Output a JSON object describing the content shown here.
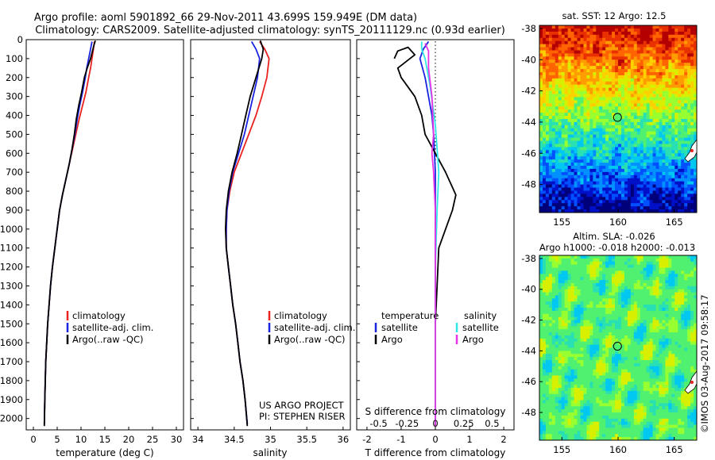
{
  "header": {
    "line1": "Argo profile: aoml 5901892_66 29-Nov-2011 43.699S 159.949E (DM data)",
    "line2": "Climatology: CARS2009. Satellite-adjusted climatology: synTS_20111129.nc (0.93d earlier)"
  },
  "side_text": "©IMOS 03-Aug-2017 09:58:17",
  "colors": {
    "climatology": "#e8221e",
    "satellite": "#1a24e0",
    "argo": "#000000",
    "salinity_sat": "#33e6e6",
    "salinity_argo": "#e633e6"
  },
  "chart_data": [
    {
      "type": "line",
      "xlabel": "temperature (deg C)",
      "xticks": [
        0,
        5,
        10,
        15,
        20,
        25,
        30
      ],
      "xlim": [
        -1.5,
        31.5
      ],
      "yticks": [
        0,
        100,
        200,
        300,
        400,
        500,
        600,
        700,
        800,
        900,
        1000,
        1100,
        1200,
        1300,
        1400,
        1500,
        1600,
        1700,
        1800,
        1900,
        2000
      ],
      "ylim": [
        0,
        2060
      ],
      "y_reversed": true,
      "legend": {
        "placement": "center-right",
        "entries": [
          "climatology",
          "satellite-adj. clim.",
          "Argo(..raw -QC)"
        ]
      },
      "series": [
        {
          "name": "climatology",
          "color": "#e8221e",
          "points": [
            [
              12.8,
              10
            ],
            [
              12.6,
              50
            ],
            [
              12.3,
              100
            ],
            [
              12.0,
              150
            ],
            [
              11.6,
              200
            ],
            [
              11.0,
              280
            ],
            [
              10.3,
              350
            ],
            [
              9.6,
              420
            ],
            [
              8.9,
              500
            ],
            [
              8.2,
              580
            ],
            [
              7.5,
              660
            ],
            [
              6.8,
              740
            ],
            [
              6.1,
              820
            ],
            [
              5.5,
              900
            ],
            [
              5.0,
              1000
            ],
            [
              4.5,
              1100
            ],
            [
              4.0,
              1200
            ],
            [
              3.6,
              1300
            ],
            [
              3.3,
              1400
            ],
            [
              3.0,
              1500
            ],
            [
              2.8,
              1600
            ],
            [
              2.6,
              1700
            ],
            [
              2.5,
              1800
            ],
            [
              2.4,
              1900
            ],
            [
              2.3,
              2030
            ]
          ]
        },
        {
          "name": "satellite-adj. clim.",
          "color": "#1a24e0",
          "points": [
            [
              12.3,
              10
            ],
            [
              12.0,
              50
            ],
            [
              11.6,
              100
            ],
            [
              11.2,
              150
            ],
            [
              10.9,
              200
            ],
            [
              10.3,
              280
            ],
            [
              9.7,
              350
            ],
            [
              9.2,
              420
            ],
            [
              8.7,
              500
            ],
            [
              8.1,
              580
            ],
            [
              7.5,
              660
            ],
            [
              6.8,
              740
            ],
            [
              6.1,
              820
            ],
            [
              5.5,
              900
            ],
            [
              5.0,
              1000
            ],
            [
              4.5,
              1100
            ],
            [
              4.0,
              1200
            ],
            [
              3.6,
              1300
            ],
            [
              3.3,
              1400
            ],
            [
              3.0,
              1500
            ],
            [
              2.8,
              1600
            ],
            [
              2.6,
              1700
            ],
            [
              2.5,
              1800
            ],
            [
              2.4,
              1900
            ],
            [
              2.3,
              2030
            ]
          ]
        },
        {
          "name": "Argo(..raw -QC)",
          "color": "#000000",
          "points": [
            [
              13.0,
              5
            ],
            [
              12.7,
              30
            ],
            [
              12.4,
              60
            ],
            [
              12.0,
              100
            ],
            [
              11.3,
              150
            ],
            [
              10.7,
              200
            ],
            [
              10.1,
              280
            ],
            [
              9.5,
              350
            ],
            [
              9.0,
              420
            ],
            [
              8.6,
              500
            ],
            [
              8.1,
              580
            ],
            [
              7.5,
              660
            ],
            [
              6.8,
              740
            ],
            [
              6.1,
              820
            ],
            [
              5.5,
              900
            ],
            [
              5.0,
              1000
            ],
            [
              4.5,
              1100
            ],
            [
              4.0,
              1200
            ],
            [
              3.6,
              1300
            ],
            [
              3.3,
              1400
            ],
            [
              3.0,
              1500
            ],
            [
              2.8,
              1600
            ],
            [
              2.6,
              1700
            ],
            [
              2.5,
              1800
            ],
            [
              2.4,
              1900
            ],
            [
              2.3,
              2040
            ]
          ]
        }
      ]
    },
    {
      "type": "line",
      "xlabel": "salinity",
      "xticks": [
        34,
        34.5,
        35,
        35.5,
        36
      ],
      "xtick_labels": [
        "34",
        "34.5",
        "35",
        "35.5",
        "36"
      ],
      "xlim": [
        33.9,
        36.1
      ],
      "yticks": [
        0,
        100,
        200,
        300,
        400,
        500,
        600,
        700,
        800,
        900,
        1000,
        1100,
        1200,
        1300,
        1400,
        1500,
        1600,
        1700,
        1800,
        1900,
        2000
      ],
      "ylim": [
        0,
        2060
      ],
      "y_reversed": true,
      "legend": {
        "placement": "center-right",
        "entries": [
          "climatology",
          "satellite-adj. clim.",
          "Argo(..raw -QC)"
        ]
      },
      "annotation": [
        "US ARGO PROJECT",
        "PI: STEPHEN RISER"
      ],
      "series": [
        {
          "name": "climatology",
          "color": "#e8221e",
          "points": [
            [
              34.85,
              10
            ],
            [
              34.92,
              50
            ],
            [
              34.98,
              100
            ],
            [
              34.95,
              200
            ],
            [
              34.88,
              300
            ],
            [
              34.8,
              400
            ],
            [
              34.7,
              500
            ],
            [
              34.6,
              600
            ],
            [
              34.5,
              700
            ],
            [
              34.44,
              800
            ],
            [
              34.4,
              900
            ],
            [
              34.39,
              1000
            ],
            [
              34.39,
              1100
            ],
            [
              34.42,
              1200
            ],
            [
              34.45,
              1300
            ],
            [
              34.48,
              1400
            ],
            [
              34.52,
              1500
            ],
            [
              34.55,
              1600
            ],
            [
              34.58,
              1700
            ],
            [
              34.62,
              1800
            ],
            [
              34.65,
              1900
            ],
            [
              34.68,
              2030
            ]
          ]
        },
        {
          "name": "satellite-adj. clim.",
          "color": "#1a24e0",
          "points": [
            [
              34.74,
              10
            ],
            [
              34.8,
              50
            ],
            [
              34.85,
              100
            ],
            [
              34.82,
              200
            ],
            [
              34.76,
              300
            ],
            [
              34.7,
              400
            ],
            [
              34.64,
              500
            ],
            [
              34.56,
              600
            ],
            [
              34.48,
              700
            ],
            [
              34.43,
              800
            ],
            [
              34.4,
              900
            ],
            [
              34.39,
              1000
            ],
            [
              34.39,
              1100
            ],
            [
              34.42,
              1200
            ],
            [
              34.45,
              1300
            ],
            [
              34.48,
              1400
            ],
            [
              34.52,
              1500
            ],
            [
              34.55,
              1600
            ],
            [
              34.58,
              1700
            ],
            [
              34.62,
              1800
            ],
            [
              34.65,
              1900
            ],
            [
              34.68,
              2030
            ]
          ]
        },
        {
          "name": "Argo(..raw -QC)",
          "color": "#000000",
          "points": [
            [
              34.86,
              5
            ],
            [
              34.9,
              50
            ],
            [
              34.88,
              100
            ],
            [
              34.8,
              200
            ],
            [
              34.72,
              300
            ],
            [
              34.66,
              400
            ],
            [
              34.6,
              500
            ],
            [
              34.54,
              600
            ],
            [
              34.47,
              700
            ],
            [
              34.42,
              800
            ],
            [
              34.39,
              900
            ],
            [
              34.38,
              1000
            ],
            [
              34.39,
              1100
            ],
            [
              34.42,
              1200
            ],
            [
              34.45,
              1300
            ],
            [
              34.48,
              1400
            ],
            [
              34.52,
              1500
            ],
            [
              34.55,
              1600
            ],
            [
              34.58,
              1700
            ],
            [
              34.62,
              1800
            ],
            [
              34.65,
              1900
            ],
            [
              34.68,
              2040
            ]
          ]
        }
      ]
    },
    {
      "type": "line",
      "xlabel": "T difference from climatology",
      "xticks": [
        -2,
        -1,
        0,
        1,
        2
      ],
      "xlim": [
        -2.3,
        2.3
      ],
      "top_xlabel": "S difference from climatology",
      "top_xticks": [
        "-0.5",
        "-0.25",
        "0",
        "0.25",
        "0.5"
      ],
      "ylim": [
        0,
        2060
      ],
      "y_reversed": true,
      "legend": {
        "placement": "center",
        "temperature_title": "temperature",
        "salinity_title": "salinity",
        "entries": [
          "satellite",
          "Argo"
        ]
      },
      "series": [
        {
          "name": "temperature satellite",
          "color": "#1a24e0",
          "points": [
            [
              -0.2,
              10
            ],
            [
              -0.35,
              50
            ],
            [
              -0.45,
              100
            ],
            [
              -0.3,
              200
            ],
            [
              -0.2,
              300
            ],
            [
              -0.1,
              400
            ],
            [
              -0.05,
              500
            ],
            [
              0,
              700
            ],
            [
              0,
              1000
            ],
            [
              0,
              1500
            ],
            [
              0,
              2030
            ]
          ]
        },
        {
          "name": "temperature Argo",
          "color": "#000000",
          "points": [
            [
              -1.2,
              100
            ],
            [
              -1.1,
              60
            ],
            [
              -0.8,
              40
            ],
            [
              -0.6,
              80
            ],
            [
              -1.1,
              150
            ],
            [
              -1.0,
              200
            ],
            [
              -0.8,
              250
            ],
            [
              -0.6,
              300
            ],
            [
              -0.4,
              400
            ],
            [
              -0.3,
              500
            ],
            [
              0,
              600
            ],
            [
              0.3,
              700
            ],
            [
              0.6,
              820
            ],
            [
              0.5,
              900
            ],
            [
              0.3,
              1000
            ],
            [
              0.1,
              1100
            ],
            [
              0.05,
              1300
            ],
            [
              0,
              1500
            ],
            [
              0,
              2040
            ]
          ]
        },
        {
          "name": "salinity satellite",
          "color": "#33e6e6",
          "points": [
            [
              -0.4,
              10
            ],
            [
              -0.4,
              50
            ],
            [
              -0.3,
              100
            ],
            [
              -0.15,
              250
            ],
            [
              0,
              450
            ],
            [
              0.1,
              700
            ],
            [
              0.05,
              900
            ],
            [
              0,
              1200
            ],
            [
              0,
              2030
            ]
          ]
        },
        {
          "name": "salinity Argo",
          "color": "#e633e6",
          "points": [
            [
              -0.3,
              20
            ],
            [
              -0.2,
              60
            ],
            [
              -0.2,
              150
            ],
            [
              -0.1,
              300
            ],
            [
              -0.05,
              500
            ],
            [
              -0.1,
              600
            ],
            [
              -0.05,
              700
            ],
            [
              0,
              900
            ],
            [
              0,
              2040
            ]
          ]
        }
      ]
    },
    {
      "type": "heatmap",
      "title": "sat. SST: 12 Argo: 12.5",
      "xticks": [
        155,
        160,
        165
      ],
      "yticks": [
        -38,
        -40,
        -42,
        -44,
        -46,
        -48
      ],
      "xlim": [
        153,
        167
      ],
      "ylim": [
        -49.8,
        -37.8
      ],
      "marker": {
        "lon": 159.95,
        "lat": -43.7
      }
    },
    {
      "type": "heatmap",
      "title_line1": "Altim. SLA: -0.026",
      "title_line2": "Argo h1000: -0.018 h2000: -0.013",
      "xticks": [
        155,
        160,
        165
      ],
      "yticks": [
        -38,
        -40,
        -42,
        -44,
        -46,
        -48
      ],
      "xlim": [
        153,
        167
      ],
      "ylim": [
        -49.8,
        -37.8
      ],
      "marker": {
        "lon": 159.95,
        "lat": -43.7
      }
    }
  ]
}
